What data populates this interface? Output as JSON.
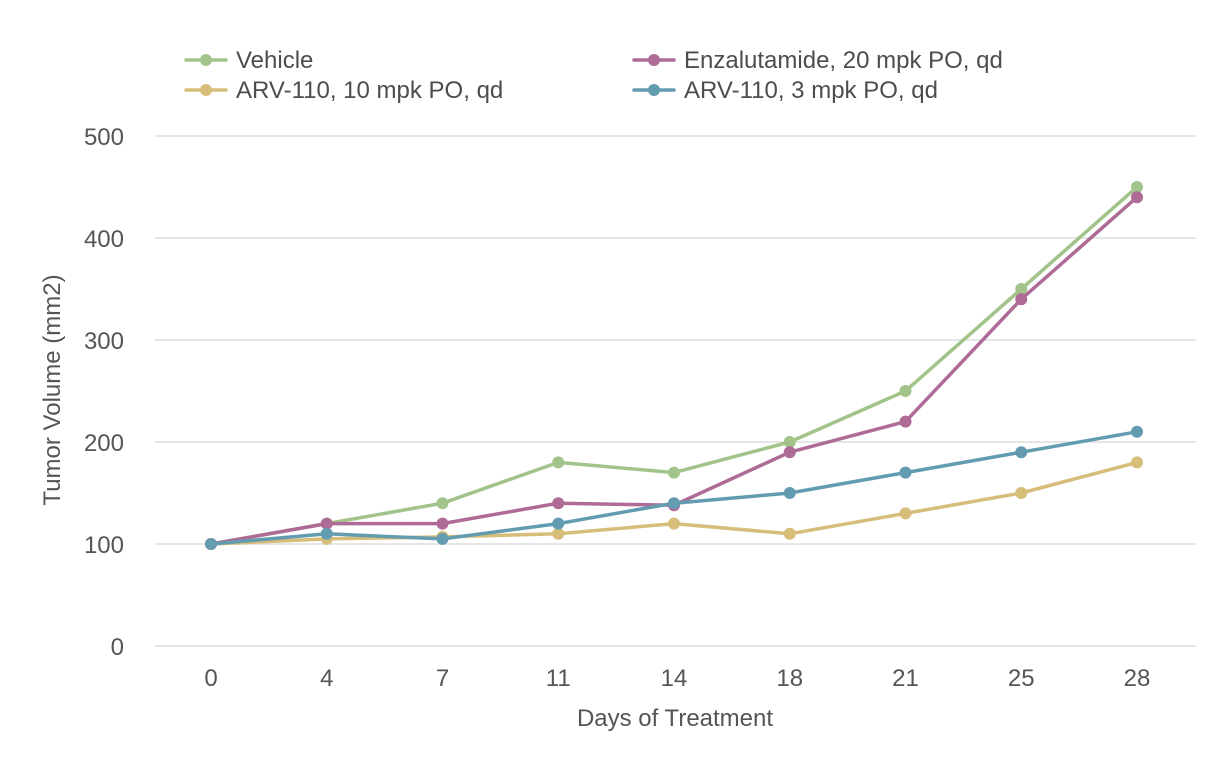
{
  "chart_data": {
    "type": "line",
    "title": "",
    "xlabel": "Days of Treatment",
    "ylabel": "Tumor Volume (mm2)",
    "categories": [
      "0",
      "4",
      "7",
      "11",
      "14",
      "18",
      "21",
      "25",
      "28"
    ],
    "ylim": [
      0,
      500
    ],
    "yticks": [
      "0",
      "100",
      "200",
      "300",
      "400",
      "500"
    ],
    "grid": true,
    "legend_position": "top",
    "series": [
      {
        "name": "Vehicle",
        "color": "#a2c48a",
        "values": [
          100,
          120,
          140,
          180,
          170,
          200,
          250,
          350,
          450
        ]
      },
      {
        "name": "Enzalutamide, 20 mpk PO, qd",
        "color": "#ad6b96",
        "values": [
          100,
          120,
          120,
          140,
          138,
          190,
          220,
          340,
          440
        ]
      },
      {
        "name": "ARV-110, 10 mpk PO, qd",
        "color": "#d6bd7a",
        "values": [
          100,
          105,
          107,
          110,
          120,
          110,
          130,
          150,
          180
        ]
      },
      {
        "name": "ARV-110, 3 mpk PO, qd",
        "color": "#639cb0",
        "values": [
          100,
          110,
          105,
          120,
          140,
          150,
          170,
          190,
          210
        ]
      }
    ]
  }
}
